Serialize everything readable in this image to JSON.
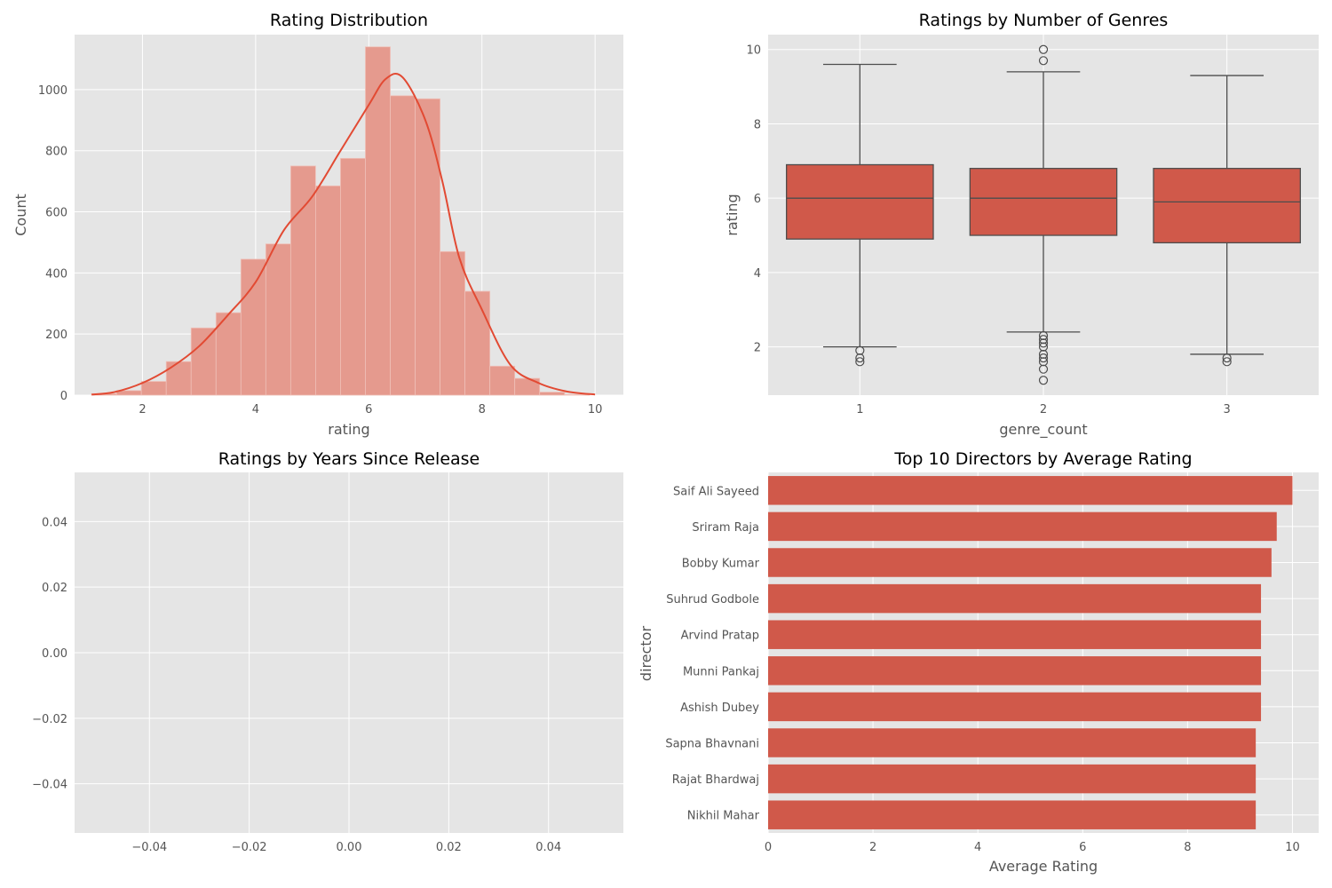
{
  "colors": {
    "panel_bg": "#e5e5e5",
    "grid": "#ffffff",
    "accent": "#e24a33",
    "bar_fill": "#d0594a",
    "hist_fill": "#e59a8e",
    "box_edge": "#4d4d4d",
    "tick_text": "#555555"
  },
  "chart_data": [
    {
      "type": "histogram",
      "title": "Rating Distribution",
      "xlabel": "rating",
      "ylabel": "Count",
      "xlim": [
        0.8,
        10.5
      ],
      "ylim": [
        0,
        1180
      ],
      "xticks": [
        2,
        4,
        6,
        8,
        10
      ],
      "yticks": [
        0,
        200,
        400,
        600,
        800,
        1000
      ],
      "grid": true,
      "bin_edges": [
        1.1,
        1.54,
        1.98,
        2.42,
        2.86,
        3.3,
        3.74,
        4.18,
        4.62,
        5.06,
        5.5,
        5.94,
        6.38,
        6.82,
        7.26,
        7.7,
        8.14,
        8.58,
        9.02,
        9.46,
        9.9
      ],
      "counts": [
        5,
        15,
        45,
        110,
        220,
        270,
        445,
        495,
        750,
        685,
        775,
        1140,
        980,
        970,
        470,
        340,
        95,
        55,
        10,
        2
      ],
      "kde": {
        "x": [
          1.1,
          1.5,
          2.0,
          2.5,
          3.0,
          3.5,
          4.0,
          4.5,
          5.0,
          5.5,
          6.0,
          6.3,
          6.6,
          7.0,
          7.3,
          7.6,
          8.0,
          8.5,
          9.0,
          9.5,
          10.0
        ],
        "y": [
          2,
          10,
          40,
          90,
          160,
          260,
          370,
          540,
          650,
          800,
          950,
          1035,
          1040,
          900,
          700,
          450,
          280,
          100,
          40,
          12,
          2
        ]
      }
    },
    {
      "type": "box",
      "title": "Ratings by Number of Genres",
      "xlabel": "genre_count",
      "ylabel": "rating",
      "categories": [
        "1",
        "2",
        "3"
      ],
      "ylim": [
        0.7,
        10.4
      ],
      "yticks": [
        2,
        4,
        6,
        8,
        10
      ],
      "grid": true,
      "boxes": [
        {
          "q1": 4.9,
          "median": 6.0,
          "q3": 6.9,
          "whisker_low": 2.0,
          "whisker_high": 9.6,
          "outliers": [
            1.9,
            1.7,
            1.6
          ]
        },
        {
          "q1": 5.0,
          "median": 6.0,
          "q3": 6.8,
          "whisker_low": 2.4,
          "whisker_high": 9.4,
          "outliers": [
            10.0,
            9.7,
            2.3,
            2.2,
            2.1,
            2.0,
            1.8,
            1.7,
            1.6,
            1.4,
            1.1
          ]
        },
        {
          "q1": 4.8,
          "median": 5.9,
          "q3": 6.8,
          "whisker_low": 1.8,
          "whisker_high": 9.3,
          "outliers": [
            1.7,
            1.6
          ]
        }
      ]
    },
    {
      "type": "scatter",
      "title": "Ratings by Years Since Release",
      "xlabel": "",
      "ylabel": "",
      "xlim": [
        -0.055,
        0.055
      ],
      "ylim": [
        -0.055,
        0.055
      ],
      "xticks": [
        -0.04,
        -0.02,
        0.0,
        0.02,
        0.04
      ],
      "yticks": [
        -0.04,
        -0.02,
        0.0,
        0.02,
        0.04
      ],
      "xtick_labels": [
        "−0.04",
        "−0.02",
        "0.00",
        "0.02",
        "0.04"
      ],
      "ytick_labels": [
        "−0.04",
        "−0.02",
        "0.00",
        "0.02",
        "0.04"
      ],
      "grid": true,
      "points": []
    },
    {
      "type": "bar",
      "orientation": "horizontal",
      "title": "Top 10 Directors by Average Rating",
      "xlabel": "Average Rating",
      "ylabel": "director",
      "xlim": [
        0,
        10.5
      ],
      "xticks": [
        0,
        2,
        4,
        6,
        8,
        10
      ],
      "grid": true,
      "categories": [
        "Saif Ali Sayeed",
        "Sriram Raja",
        "Bobby Kumar",
        "Suhrud Godbole",
        "Arvind Pratap",
        "Munni Pankaj",
        "Ashish Dubey",
        "Sapna Bhavnani",
        "Rajat Bhardwaj",
        "Nikhil Mahar"
      ],
      "values": [
        10.0,
        9.7,
        9.6,
        9.4,
        9.4,
        9.4,
        9.4,
        9.3,
        9.3,
        9.3
      ]
    }
  ]
}
